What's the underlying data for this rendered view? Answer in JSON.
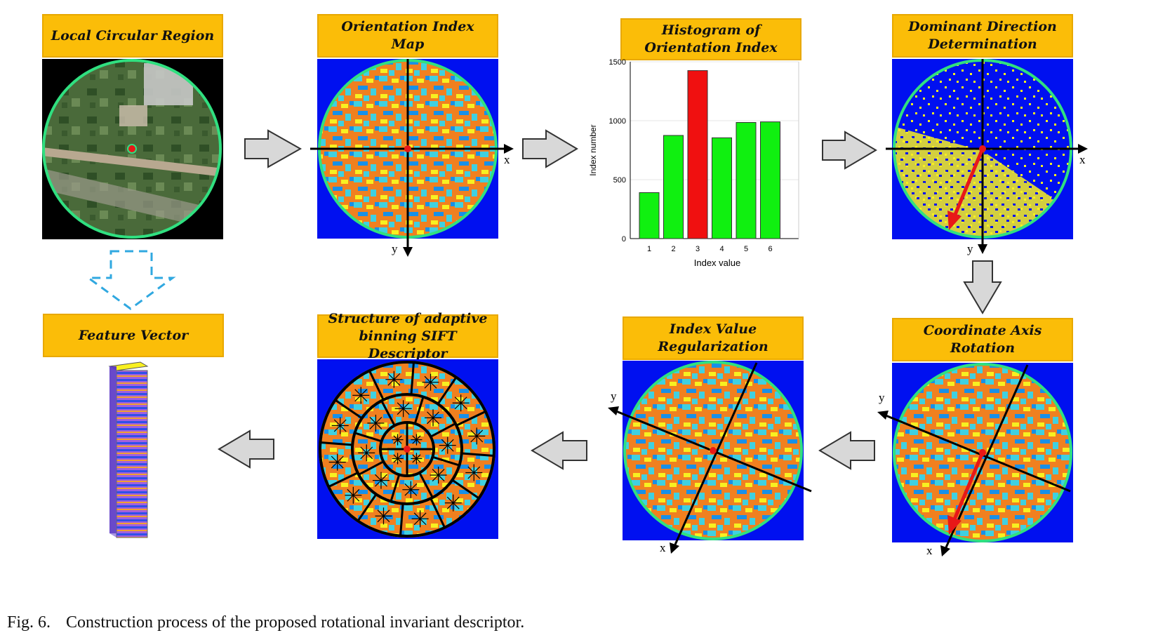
{
  "titles": {
    "local": "Local Circular Region",
    "orient_map": "Orientation Index Map",
    "hist_line1": "Histogram of",
    "hist_line2": "Orientation Index",
    "dominant_line1": "Dominant Direction",
    "dominant_line2": "Determination",
    "coord_rotation": "Coordinate Axis Rotation",
    "regularization": "Index Value Regularization",
    "structure_line1": "Structure of adaptive",
    "structure_line2": "binning SIFT Descriptor",
    "feature": "Feature Vector"
  },
  "axes": {
    "x": "x",
    "y": "y"
  },
  "colors": {
    "title_bg": "#fbbd08",
    "map_blue": "#0010f0",
    "orange": "#f08020",
    "cyan": "#40d0e0",
    "yellow": "#f8f020",
    "green_ring": "#30e080",
    "bar_green": "#10f010",
    "bar_red": "#f01010",
    "arrow_red": "#e81818"
  },
  "chart_data": {
    "type": "bar",
    "categories": [
      "1",
      "2",
      "3",
      "4",
      "5",
      "6"
    ],
    "values": [
      390,
      875,
      1425,
      855,
      985,
      990
    ],
    "highlight_index": 2,
    "xlabel": "Index value",
    "ylabel": "Index number",
    "ylim": [
      0,
      1500
    ],
    "yticks": [
      "0",
      "500",
      "1000",
      "1500"
    ],
    "grid": true
  },
  "caption": {
    "fig": "Fig. 6.",
    "text": "Construction process of the proposed rotational invariant descriptor."
  }
}
